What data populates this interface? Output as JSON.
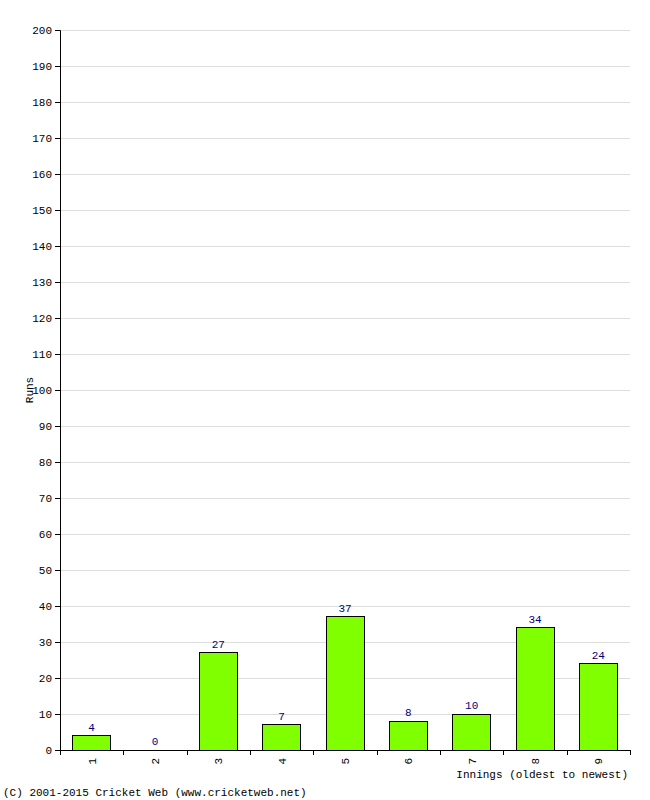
{
  "chart_data": {
    "type": "bar",
    "x_label": "Innings (oldest to newest)",
    "y_label": "Runs",
    "annotations": [
      "(C) 2001-2015 Cricket Web (www.cricketweb.net)"
    ],
    "categories": [
      "1",
      "2",
      "3",
      "4",
      "5",
      "6",
      "7",
      "8",
      "9"
    ],
    "values": [
      4,
      0,
      27,
      7,
      37,
      8,
      10,
      34,
      24
    ],
    "color": "#80ff00",
    "ylim": [
      0,
      200
    ],
    "yticks": [
      0,
      10,
      20,
      30,
      40,
      50,
      60,
      70,
      80,
      90,
      100,
      110,
      120,
      130,
      140,
      150,
      160,
      170,
      180,
      190,
      200
    ],
    "grid": true,
    "data_labels": true
  }
}
